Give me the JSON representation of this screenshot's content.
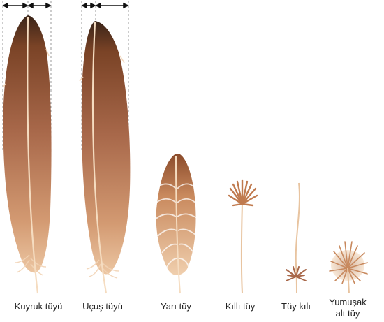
{
  "labels": {
    "tail": "Kuyruk tüyü",
    "flight": "Uçuş tüyü",
    "semi": "Yarı tüy",
    "filoplume": "Kıllı tüy",
    "bristle": "Tüy kılı",
    "down_line1": "Yumuşak",
    "down_line2": "alt tüy"
  },
  "colors": {
    "tip": "#3a2418",
    "mid": "#9a5a34",
    "base": "#e2b48e",
    "shaft": "#f5dcc0",
    "arrow": "#111111",
    "guide": "#9a9a9a"
  }
}
